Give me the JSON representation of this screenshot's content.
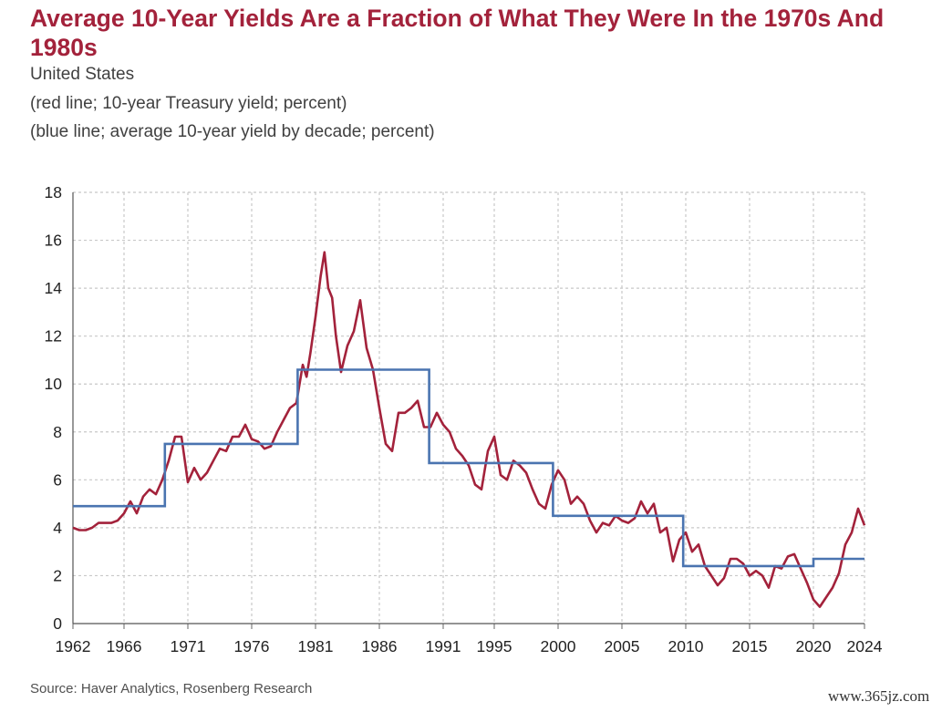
{
  "title": "Average 10-Year Yields Are a Fraction of What They Were In the 1970s And 1980s",
  "subtitle_1": "United States",
  "subtitle_2": "(red line; 10-year Treasury yield; percent)",
  "subtitle_3": "(blue line; average 10-year yield by decade; percent)",
  "source": "Source: Haver Analytics, Rosenberg Research",
  "watermark": "www.365jz.com",
  "chart_data": {
    "type": "line",
    "title": "Average 10-Year Yields Are a Fraction of What They Were In the 1970s And 1980s",
    "xlabel": "",
    "ylabel": "",
    "xlim": [
      1962,
      2024
    ],
    "ylim": [
      0,
      18
    ],
    "x_ticks": [
      "1962",
      "1966",
      "1971",
      "1976",
      "1981",
      "1986",
      "1991",
      "1995",
      "2000",
      "2005",
      "2010",
      "2015",
      "2020",
      "2024"
    ],
    "y_ticks": [
      "0",
      "2",
      "4",
      "6",
      "8",
      "10",
      "12",
      "14",
      "16",
      "18"
    ],
    "grid": true,
    "colors": {
      "treasury": "#a3223b",
      "decade_avg": "#4a74b0",
      "grid": "#c8c8c8",
      "title": "#a3223b"
    },
    "series": [
      {
        "name": "10-year Treasury yield",
        "x": [
          1962.0,
          1962.5,
          1963.0,
          1963.5,
          1964.0,
          1964.5,
          1965.0,
          1965.5,
          1966.0,
          1966.5,
          1967.0,
          1967.5,
          1968.0,
          1968.5,
          1969.0,
          1969.5,
          1970.0,
          1970.5,
          1971.0,
          1971.5,
          1972.0,
          1972.5,
          1973.0,
          1973.5,
          1974.0,
          1974.5,
          1975.0,
          1975.5,
          1976.0,
          1976.5,
          1977.0,
          1977.5,
          1978.0,
          1978.5,
          1979.0,
          1979.5,
          1980.0,
          1980.3,
          1980.6,
          1981.0,
          1981.4,
          1981.7,
          1982.0,
          1982.3,
          1982.6,
          1983.0,
          1983.5,
          1984.0,
          1984.5,
          1985.0,
          1985.5,
          1986.0,
          1986.5,
          1987.0,
          1987.5,
          1988.0,
          1988.5,
          1989.0,
          1989.5,
          1990.0,
          1990.5,
          1991.0,
          1991.5,
          1992.0,
          1992.5,
          1993.0,
          1993.5,
          1994.0,
          1994.5,
          1995.0,
          1995.5,
          1996.0,
          1996.5,
          1997.0,
          1997.5,
          1998.0,
          1998.5,
          1999.0,
          1999.5,
          2000.0,
          2000.5,
          2001.0,
          2001.5,
          2002.0,
          2002.5,
          2003.0,
          2003.5,
          2004.0,
          2004.5,
          2005.0,
          2005.5,
          2006.0,
          2006.5,
          2007.0,
          2007.5,
          2008.0,
          2008.5,
          2009.0,
          2009.5,
          2010.0,
          2010.5,
          2011.0,
          2011.5,
          2012.0,
          2012.5,
          2013.0,
          2013.5,
          2014.0,
          2014.5,
          2015.0,
          2015.5,
          2016.0,
          2016.5,
          2017.0,
          2017.5,
          2018.0,
          2018.5,
          2019.0,
          2019.5,
          2020.0,
          2020.5,
          2021.0,
          2021.5,
          2022.0,
          2022.5,
          2023.0,
          2023.5,
          2024.0
        ],
        "y": [
          4.0,
          3.9,
          3.9,
          4.0,
          4.2,
          4.2,
          4.2,
          4.3,
          4.6,
          5.1,
          4.6,
          5.3,
          5.6,
          5.4,
          6.0,
          6.8,
          7.8,
          7.8,
          5.9,
          6.5,
          6.0,
          6.3,
          6.8,
          7.3,
          7.2,
          7.8,
          7.8,
          8.3,
          7.7,
          7.6,
          7.3,
          7.4,
          8.0,
          8.5,
          9.0,
          9.2,
          10.8,
          10.3,
          11.3,
          12.8,
          14.5,
          15.5,
          14.0,
          13.6,
          12.0,
          10.5,
          11.6,
          12.2,
          13.5,
          11.5,
          10.6,
          9.0,
          7.5,
          7.2,
          8.8,
          8.8,
          9.0,
          9.3,
          8.2,
          8.2,
          8.8,
          8.3,
          8.0,
          7.3,
          7.0,
          6.6,
          5.8,
          5.6,
          7.2,
          7.8,
          6.2,
          6.0,
          6.8,
          6.6,
          6.3,
          5.6,
          5.0,
          4.8,
          5.8,
          6.4,
          6.0,
          5.0,
          5.3,
          5.0,
          4.3,
          3.8,
          4.2,
          4.1,
          4.5,
          4.3,
          4.2,
          4.4,
          5.1,
          4.6,
          5.0,
          3.8,
          4.0,
          2.6,
          3.5,
          3.8,
          3.0,
          3.3,
          2.4,
          2.0,
          1.6,
          1.9,
          2.7,
          2.7,
          2.5,
          2.0,
          2.2,
          2.0,
          1.5,
          2.4,
          2.3,
          2.8,
          2.9,
          2.3,
          1.7,
          1.0,
          0.7,
          1.1,
          1.5,
          2.1,
          3.3,
          3.8,
          4.8,
          4.1
        ]
      },
      {
        "name": "average 10-year yield by decade",
        "x": [
          1962,
          1969.2,
          1969.2,
          1979.6,
          1979.6,
          1989.9,
          1989.9,
          1999.6,
          1999.6,
          2009.8,
          2009.8,
          2020.0,
          2020.0,
          2024
        ],
        "y": [
          4.9,
          4.9,
          7.5,
          7.5,
          10.6,
          10.6,
          6.7,
          6.7,
          4.5,
          4.5,
          2.4,
          2.4,
          2.7,
          2.7
        ]
      }
    ]
  }
}
